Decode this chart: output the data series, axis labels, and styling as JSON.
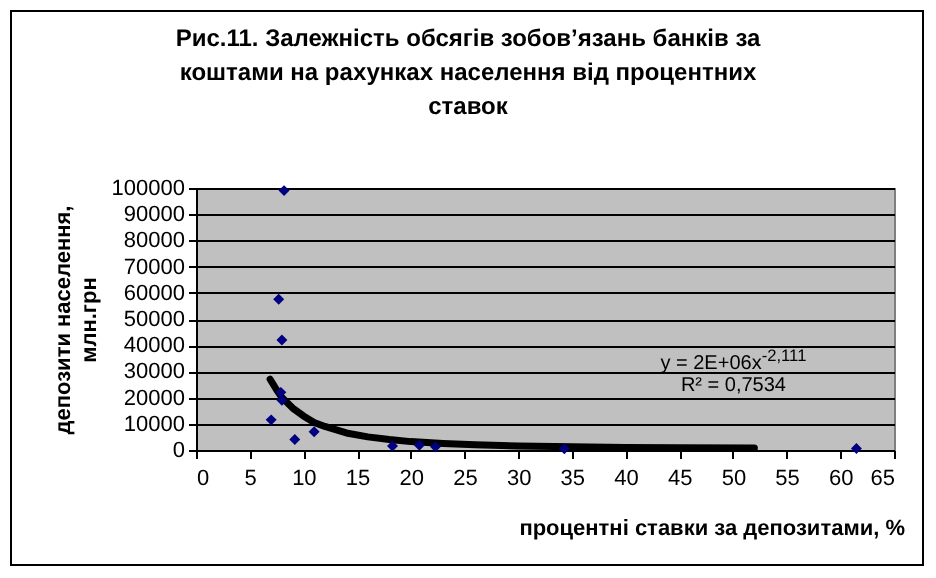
{
  "chart_data": {
    "type": "scatter",
    "title": "Рис.11. Залежність обсягів зобов’язань банків за коштами на рахунках населення від процентних ставок",
    "xlabel": "процентні ставки за депозитами, %",
    "ylabel": "депозити населення, млн.грн",
    "xlim": [
      0,
      65
    ],
    "xticks": [
      0,
      5,
      10,
      15,
      20,
      25,
      30,
      35,
      40,
      45,
      50,
      55,
      60,
      65
    ],
    "ylim": [
      0,
      100000
    ],
    "yticks": [
      0,
      10000,
      20000,
      30000,
      40000,
      50000,
      60000,
      70000,
      80000,
      90000,
      100000
    ],
    "grid": "y",
    "marker": "diamond",
    "series": [
      {
        "color": "#000080",
        "x": [
          8.2,
          7.7,
          8.0,
          7.0,
          7.9,
          8.0,
          9.2,
          11.0,
          18.3,
          20.8,
          22.3,
          34.3,
          61.5
        ],
        "values": [
          99000,
          57500,
          42000,
          11500,
          22000,
          19000,
          4000,
          7000,
          1500,
          1800,
          1200,
          500,
          600
        ]
      },
      {
        "type": "line",
        "color": "#000000",
        "marker": "none",
        "x": [
          6.9,
          7.5,
          8,
          9,
          10,
          11,
          12,
          14,
          16,
          18,
          20,
          23,
          26,
          30,
          35,
          40,
          45,
          52
        ],
        "values": [
          27000,
          23000,
          20000,
          16000,
          13000,
          10500,
          9000,
          6500,
          5000,
          4000,
          3200,
          2500,
          2000,
          1500,
          1200,
          1000,
          900,
          800
        ]
      }
    ],
    "annotations": [
      "y = 2E+06x$^{-2,111}$",
      "R² = 0,7534"
    ]
  }
}
